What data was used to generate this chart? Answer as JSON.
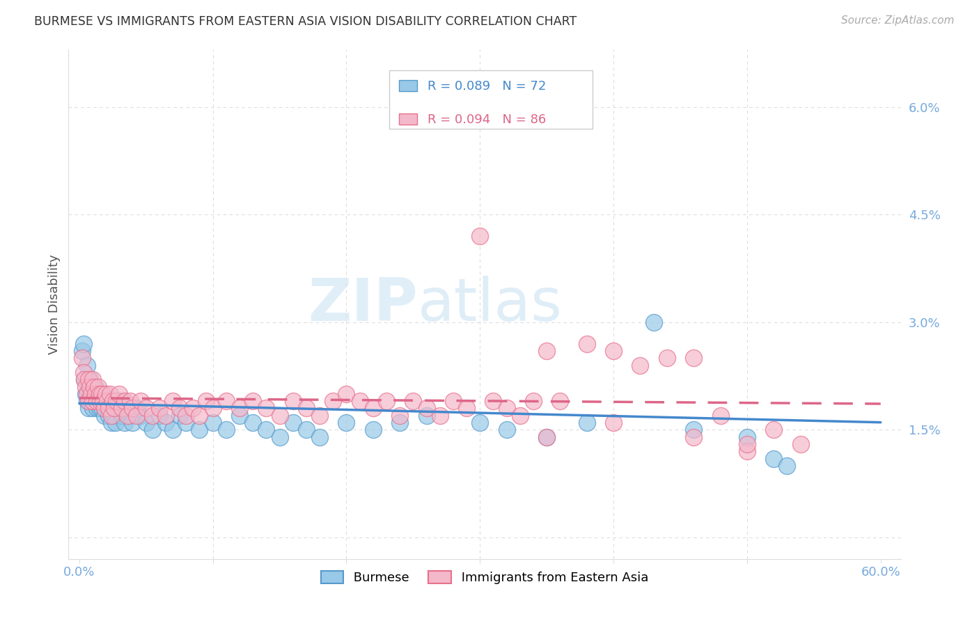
{
  "title": "BURMESE VS IMMIGRANTS FROM EASTERN ASIA VISION DISABILITY CORRELATION CHART",
  "source": "Source: ZipAtlas.com",
  "ylabel": "Vision Disability",
  "watermark_zip": "ZIP",
  "watermark_atlas": "atlas",
  "xlim": [
    0.0,
    0.6
  ],
  "ylim": [
    0.0,
    0.065
  ],
  "yticks": [
    0.0,
    0.015,
    0.03,
    0.045,
    0.06
  ],
  "ytick_labels": [
    "",
    "1.5%",
    "3.0%",
    "4.5%",
    "6.0%"
  ],
  "xticks": [
    0.0,
    0.1,
    0.2,
    0.3,
    0.4,
    0.5,
    0.6
  ],
  "xtick_labels": [
    "0.0%",
    "",
    "",
    "",
    "",
    "",
    "60.0%"
  ],
  "legend_R1": "R = 0.089",
  "legend_N1": "N = 72",
  "legend_R2": "R = 0.094",
  "legend_N2": "N = 86",
  "color_blue_fill": "#99c9e8",
  "color_pink_fill": "#f4b8cb",
  "color_blue_edge": "#5599cc",
  "color_pink_edge": "#e8708a",
  "color_blue_line": "#4488cc",
  "color_pink_line": "#dd6688",
  "title_color": "#333333",
  "axis_color": "#77aadd",
  "grid_color": "#dddddd",
  "source_color": "#aaaaaa",
  "ylabel_color": "#555555"
}
